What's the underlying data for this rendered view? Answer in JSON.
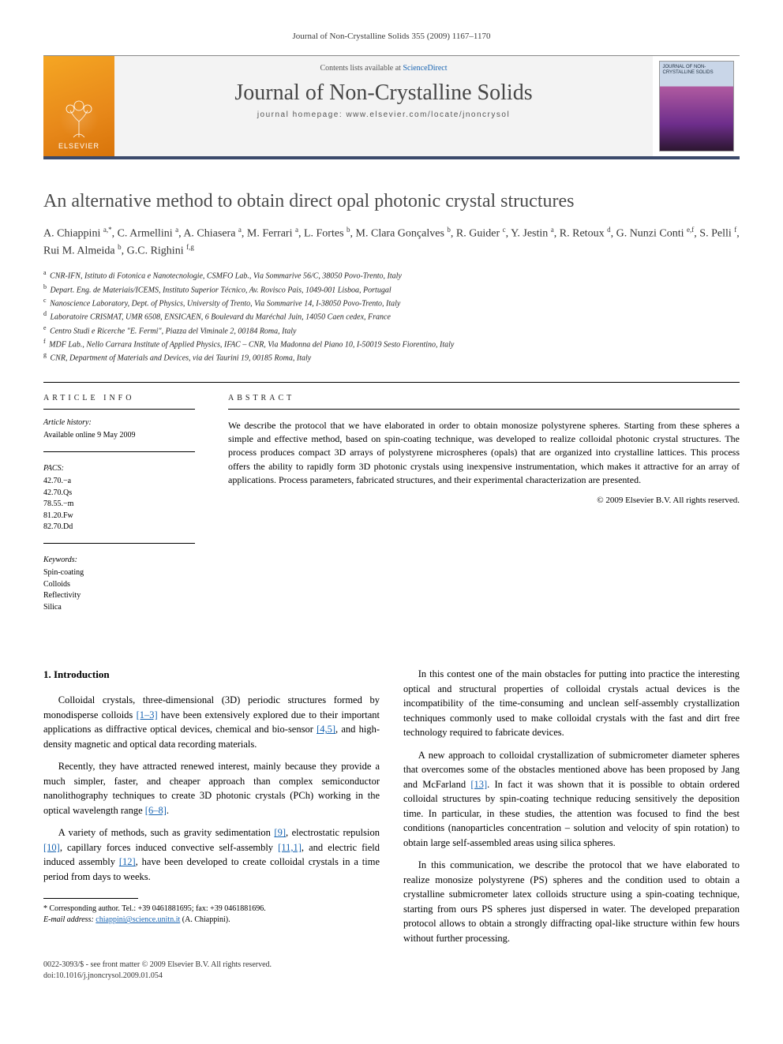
{
  "running_head": "Journal of Non-Crystalline Solids 355 (2009) 1167–1170",
  "header": {
    "contents_prefix": "Contents lists available at ",
    "contents_link": "ScienceDirect",
    "journal_name": "Journal of Non-Crystalline Solids",
    "homepage_prefix": "journal homepage: ",
    "homepage_url": "www.elsevier.com/locate/jnoncrysol",
    "publisher": "ELSEVIER",
    "cover_title": "JOURNAL OF NON-CRYSTALLINE SOLIDS"
  },
  "article": {
    "title": "An alternative method to obtain direct opal photonic crystal structures",
    "authors_html": "A. Chiappini <sup>a,*</sup>, C. Armellini <sup>a</sup>, A. Chiasera <sup>a</sup>, M. Ferrari <sup>a</sup>, L. Fortes <sup>b</sup>, M. Clara Gonçalves <sup>b</sup>, R. Guider <sup>c</sup>, Y. Jestin <sup>a</sup>, R. Retoux <sup>d</sup>, G. Nunzi Conti <sup>e,f</sup>, S. Pelli <sup>f</sup>, Rui M. Almeida <sup>b</sup>, G.C. Righini <sup>f,g</sup>",
    "affiliations": [
      {
        "key": "a",
        "text": "CNR-IFN, Istituto di Fotonica e Nanotecnologie, CSMFO Lab., Via Sommarive 56/C, 38050 Povo-Trento, Italy"
      },
      {
        "key": "b",
        "text": "Depart. Eng. de Materiais/ICEMS, Instituto Superior Técnico, Av. Rovisco Pais, 1049-001 Lisboa, Portugal"
      },
      {
        "key": "c",
        "text": "Nanoscience Laboratory, Dept. of Physics, University of Trento, Via Sommarive 14, I-38050 Povo-Trento, Italy"
      },
      {
        "key": "d",
        "text": "Laboratoire CRISMAT, UMR 6508, ENSICAEN, 6 Boulevard du Maréchal Juin, 14050 Caen cedex, France"
      },
      {
        "key": "e",
        "text": "Centro Studi e Ricerche \"E. Fermi\", Piazza del Viminale 2, 00184 Roma, Italy"
      },
      {
        "key": "f",
        "text": "MDF Lab., Nello Carrara Institute of Applied Physics, IFAC – CNR, Via Madonna del Piano 10, I-50019 Sesto Fiorentino, Italy"
      },
      {
        "key": "g",
        "text": "CNR, Department of Materials and Devices, via dei Taurini 19, 00185 Roma, Italy"
      }
    ]
  },
  "info": {
    "label": "ARTICLE INFO",
    "history_label": "Article history:",
    "history_text": "Available online 9 May 2009",
    "pacs_label": "PACS:",
    "pacs": [
      "42.70.−a",
      "42.70.Qs",
      "78.55.−m",
      "81.20.Fw",
      "82.70.Dd"
    ],
    "keywords_label": "Keywords:",
    "keywords": [
      "Spin-coating",
      "Colloids",
      "Reflectivity",
      "Silica"
    ]
  },
  "abstract": {
    "label": "ABSTRACT",
    "text": "We describe the protocol that we have elaborated in order to obtain monosize polystyrene spheres. Starting from these spheres a simple and effective method, based on spin-coating technique, was developed to realize colloidal photonic crystal structures. The process produces compact 3D arrays of polystyrene microspheres (opals) that are organized into crystalline lattices. This process offers the ability to rapidly form 3D photonic crystals using inexpensive instrumentation, which makes it attractive for an array of applications. Process parameters, fabricated structures, and their experimental characterization are presented.",
    "copyright": "© 2009 Elsevier B.V. All rights reserved."
  },
  "body": {
    "section_title": "1. Introduction",
    "p1a": "Colloidal crystals, three-dimensional (3D) periodic structures formed by monodisperse colloids ",
    "p1_ref1": "[1–3]",
    "p1b": " have been extensively explored due to their important applications as diffractive optical devices, chemical and bio-sensor ",
    "p1_ref2": "[4,5]",
    "p1c": ", and high-density magnetic and optical data recording materials.",
    "p2a": "Recently, they have attracted renewed interest, mainly because they provide a much simpler, faster, and cheaper approach than complex semiconductor nanolithography techniques to create 3D photonic crystals (PCh) working in the optical wavelength range ",
    "p2_ref": "[6–8]",
    "p2b": ".",
    "p3a": "A variety of methods, such as gravity sedimentation ",
    "p3_ref1": "[9]",
    "p3b": ", electrostatic repulsion ",
    "p3_ref2": "[10]",
    "p3c": ", capillary forces induced convective self-assembly ",
    "p3_ref3": "[11,1]",
    "p3d": ", and electric field induced assembly ",
    "p3_ref4": "[12]",
    "p3e": ", have been developed to create colloidal crystals in a time period from days to weeks.",
    "p4": "In this contest one of the main obstacles for putting into practice the interesting optical and structural properties of colloidal crystals actual devices is the incompatibility of the time-consuming and unclean self-assembly crystallization techniques commonly used to make colloidal crystals with the fast and dirt free technology required to fabricate devices.",
    "p5a": "A new approach to colloidal crystallization of submicrometer diameter spheres that overcomes some of the obstacles mentioned above has been proposed by Jang and McFarland ",
    "p5_ref": "[13]",
    "p5b": ". In fact it was shown that it is possible to obtain ordered colloidal structures by spin-coating technique reducing sensitively the deposition time. In particular, in these studies, the attention was focused to find the best conditions (nanoparticles concentration – solution and velocity of spin rotation) to obtain large self-assembled areas using silica spheres.",
    "p6": "In this communication, we describe the protocol that we have elaborated to realize monosize polystyrene (PS) spheres and the condition used to obtain a crystalline submicrometer latex colloids structure using a spin-coating technique, starting from ours PS spheres just dispersed in water. The developed preparation protocol allows to obtain a strongly diffracting opal-like structure within few hours without further processing."
  },
  "footnote": {
    "corr": "* Corresponding author. Tel.: +39 0461881695; fax: +39 0461881696.",
    "email_label": "E-mail address:",
    "email": "chiappini@science.unitn.it",
    "email_who": "(A. Chiappini)."
  },
  "footer": {
    "line1": "0022-3093/$ - see front matter © 2009 Elsevier B.V. All rights reserved.",
    "line2": "doi:10.1016/j.jnoncrysol.2009.01.054"
  },
  "colors": {
    "link": "#1864b2",
    "band_border": "#3b4a6b",
    "elsevier_grad_a": "#f5a623",
    "elsevier_grad_b": "#d8740a"
  }
}
